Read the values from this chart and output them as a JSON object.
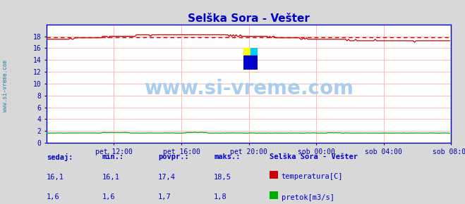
{
  "title": "Selška Sora - Vešter",
  "title_color": "#0000cc",
  "bg_color": "#d8d8d8",
  "plot_bg_color": "#ffffff",
  "grid_color": "#ffb0b0",
  "xlabel_color": "#0000aa",
  "ylabel_color": "#0000aa",
  "tick_labels": [
    "pet 12:00",
    "pet 16:00",
    "pet 20:00",
    "sob 00:00",
    "sob 04:00",
    "sob 08:00"
  ],
  "yticks": [
    0,
    2,
    4,
    6,
    8,
    10,
    12,
    14,
    16,
    18
  ],
  "ylim": [
    0,
    20
  ],
  "xlim": [
    0,
    288
  ],
  "watermark": "www.si-vreme.com",
  "watermark_color": "#aaccee",
  "dashed_line_y": 17.8,
  "dashed_line_color": "#cc0000",
  "temp_color": "#cc0000",
  "flow_color": "#00aa00",
  "axis_line_color": "#0000cc",
  "label_color": "#0000cc",
  "value_color": "#0000cc",
  "sedaj_label": "sedaj:",
  "min_label": "min.:",
  "povpr_label": "povpr.:",
  "maks_label": "maks.:",
  "station_label": "Selška Sora - Vešter",
  "temp_legend": "temperatura[C]",
  "flow_legend": "pretok[m3/s]",
  "sedaj_temp": "16,1",
  "min_temp": "16,1",
  "povpr_temp": "17,4",
  "maks_temp": "18,5",
  "sedaj_flow": "1,6",
  "min_flow": "1,6",
  "povpr_flow": "1,7",
  "maks_flow": "1,8",
  "sidebar_text": "www.si-vreme.com",
  "sidebar_color": "#5599bb"
}
